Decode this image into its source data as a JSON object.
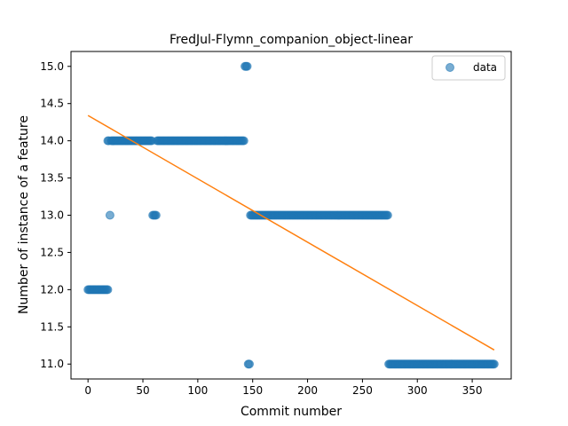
{
  "chart_data": {
    "type": "scatter",
    "title": "FredJul-Flymn_companion_object-linear",
    "xlabel": "Commit number",
    "ylabel": "Number of instance of a feature",
    "xlim": [
      -15.5,
      385.5
    ],
    "ylim": [
      10.8,
      15.2
    ],
    "xticks": [
      0,
      50,
      100,
      150,
      200,
      250,
      300,
      350
    ],
    "yticks": [
      11.0,
      11.5,
      12.0,
      12.5,
      13.0,
      13.5,
      14.0,
      14.5,
      15.0
    ],
    "ytick_labels": [
      "11.0",
      "11.5",
      "12.0",
      "12.5",
      "13.0",
      "13.5",
      "14.0",
      "14.5",
      "15.0"
    ],
    "legend": {
      "position": "top-right",
      "entries": [
        "data"
      ]
    },
    "grid": false,
    "colors": {
      "data": "#1f77b4",
      "trend": "#ff7f0e"
    },
    "series": [
      {
        "name": "data",
        "segments": [
          {
            "x_start": 0,
            "x_end": 18,
            "y": 12
          },
          {
            "x_start": 18,
            "x_end": 19,
            "y": 14
          },
          {
            "x_start": 20,
            "x_end": 20,
            "y": 13
          },
          {
            "x_start": 21,
            "x_end": 58,
            "y": 14
          },
          {
            "x_start": 59,
            "x_end": 62,
            "y": 13
          },
          {
            "x_start": 63,
            "x_end": 142,
            "y": 14
          },
          {
            "x_start": 143,
            "x_end": 145,
            "y": 15
          },
          {
            "x_start": 146,
            "x_end": 147,
            "y": 11
          },
          {
            "x_start": 148,
            "x_end": 273,
            "y": 13
          },
          {
            "x_start": 274,
            "x_end": 370,
            "y": 11
          }
        ]
      }
    ],
    "trend_line": {
      "x": [
        0,
        370
      ],
      "y": [
        14.34,
        11.19
      ]
    }
  }
}
